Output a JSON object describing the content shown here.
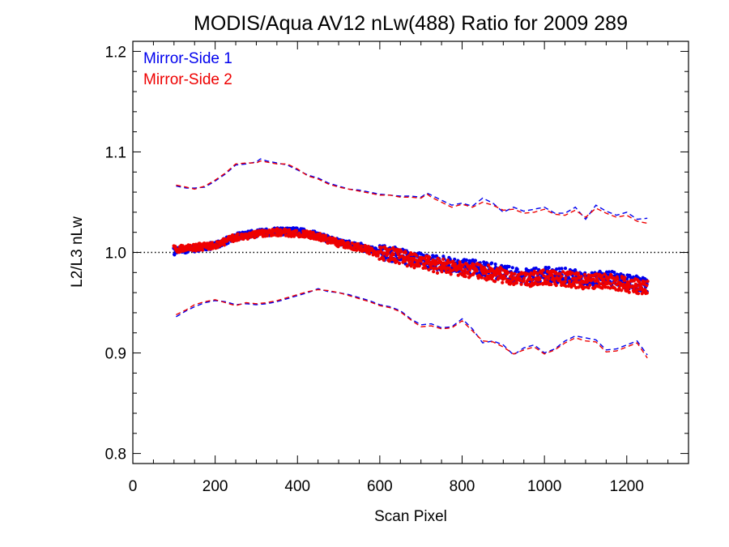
{
  "chart_data": {
    "type": "scatter",
    "title": "MODIS/Aqua AV12 nLw(488) Ratio for 2009 289",
    "xlabel": "Scan Pixel",
    "ylabel": "L2/L3 nLw",
    "xlim": [
      0,
      1350
    ],
    "ylim": [
      0.79,
      1.21
    ],
    "x_ticks": [
      0,
      200,
      400,
      600,
      800,
      1000,
      1200
    ],
    "x_tick_labels": [
      "0",
      "200",
      "400",
      "600",
      "800",
      "1000",
      "1200"
    ],
    "y_ticks": [
      0.8,
      0.9,
      1.0,
      1.1,
      1.2
    ],
    "y_tick_labels": [
      "0.8",
      "0.9",
      "1.0",
      "1.1",
      "1.2"
    ],
    "reference_line": {
      "y": 1.0,
      "style": "dotted",
      "color": "#000000"
    },
    "legend_position": "top-left",
    "series": [
      {
        "name": "Mirror-Side 1",
        "color": "#0000ee",
        "points": [
          [
            100,
            1.001
          ],
          [
            150,
            1.004
          ],
          [
            200,
            1.007
          ],
          [
            250,
            1.016
          ],
          [
            300,
            1.019
          ],
          [
            350,
            1.021
          ],
          [
            400,
            1.021
          ],
          [
            450,
            1.017
          ],
          [
            500,
            1.01
          ],
          [
            550,
            1.006
          ],
          [
            600,
            1.0
          ],
          [
            650,
            0.997
          ],
          [
            700,
            0.992
          ],
          [
            750,
            0.989
          ],
          [
            800,
            0.986
          ],
          [
            850,
            0.984
          ],
          [
            900,
            0.98
          ],
          [
            950,
            0.976
          ],
          [
            1000,
            0.978
          ],
          [
            1050,
            0.977
          ],
          [
            1100,
            0.974
          ],
          [
            1150,
            0.975
          ],
          [
            1200,
            0.971
          ],
          [
            1250,
            0.967
          ]
        ],
        "upper": [
          [
            105,
            1.066
          ],
          [
            130,
            1.064
          ],
          [
            150,
            1.064
          ],
          [
            175,
            1.065
          ],
          [
            200,
            1.071
          ],
          [
            225,
            1.078
          ],
          [
            250,
            1.087
          ],
          [
            275,
            1.088
          ],
          [
            300,
            1.09
          ],
          [
            310,
            1.093
          ],
          [
            325,
            1.091
          ],
          [
            350,
            1.089
          ],
          [
            375,
            1.087
          ],
          [
            400,
            1.082
          ],
          [
            425,
            1.077
          ],
          [
            450,
            1.074
          ],
          [
            475,
            1.069
          ],
          [
            500,
            1.066
          ],
          [
            525,
            1.063
          ],
          [
            550,
            1.062
          ],
          [
            575,
            1.06
          ],
          [
            600,
            1.058
          ],
          [
            625,
            1.057
          ],
          [
            650,
            1.056
          ],
          [
            675,
            1.056
          ],
          [
            700,
            1.055
          ],
          [
            715,
            1.059
          ],
          [
            725,
            1.057
          ],
          [
            750,
            1.052
          ],
          [
            775,
            1.047
          ],
          [
            800,
            1.049
          ],
          [
            825,
            1.046
          ],
          [
            850,
            1.054
          ],
          [
            875,
            1.049
          ],
          [
            900,
            1.04
          ],
          [
            925,
            1.045
          ],
          [
            950,
            1.041
          ],
          [
            975,
            1.043
          ],
          [
            1000,
            1.045
          ],
          [
            1025,
            1.039
          ],
          [
            1050,
            1.039
          ],
          [
            1075,
            1.045
          ],
          [
            1100,
            1.033
          ],
          [
            1125,
            1.047
          ],
          [
            1150,
            1.041
          ],
          [
            1175,
            1.037
          ],
          [
            1200,
            1.04
          ],
          [
            1225,
            1.033
          ],
          [
            1250,
            1.034
          ]
        ],
        "lower": [
          [
            105,
            0.936
          ],
          [
            130,
            0.942
          ],
          [
            150,
            0.946
          ],
          [
            175,
            0.95
          ],
          [
            200,
            0.952
          ],
          [
            225,
            0.951
          ],
          [
            250,
            0.948
          ],
          [
            275,
            0.949
          ],
          [
            300,
            0.948
          ],
          [
            325,
            0.949
          ],
          [
            350,
            0.951
          ],
          [
            375,
            0.954
          ],
          [
            400,
            0.957
          ],
          [
            425,
            0.96
          ],
          [
            450,
            0.964
          ],
          [
            475,
            0.961
          ],
          [
            500,
            0.96
          ],
          [
            525,
            0.958
          ],
          [
            550,
            0.955
          ],
          [
            575,
            0.952
          ],
          [
            600,
            0.948
          ],
          [
            625,
            0.946
          ],
          [
            650,
            0.942
          ],
          [
            675,
            0.934
          ],
          [
            700,
            0.928
          ],
          [
            725,
            0.929
          ],
          [
            750,
            0.925
          ],
          [
            775,
            0.926
          ],
          [
            800,
            0.934
          ],
          [
            825,
            0.924
          ],
          [
            850,
            0.91
          ],
          [
            875,
            0.912
          ],
          [
            900,
            0.908
          ],
          [
            925,
            0.898
          ],
          [
            950,
            0.905
          ],
          [
            975,
            0.908
          ],
          [
            1000,
            0.9
          ],
          [
            1025,
            0.904
          ],
          [
            1050,
            0.912
          ],
          [
            1075,
            0.917
          ],
          [
            1100,
            0.915
          ],
          [
            1125,
            0.913
          ],
          [
            1150,
            0.903
          ],
          [
            1175,
            0.904
          ],
          [
            1200,
            0.908
          ],
          [
            1225,
            0.912
          ],
          [
            1250,
            0.898
          ]
        ]
      },
      {
        "name": "Mirror-Side 2",
        "color": "#ee0000",
        "points": [
          [
            100,
            1.003
          ],
          [
            150,
            1.005
          ],
          [
            200,
            1.007
          ],
          [
            250,
            1.015
          ],
          [
            300,
            1.018
          ],
          [
            350,
            1.02
          ],
          [
            400,
            1.019
          ],
          [
            450,
            1.016
          ],
          [
            500,
            1.009
          ],
          [
            550,
            1.005
          ],
          [
            600,
            0.999
          ],
          [
            650,
            0.996
          ],
          [
            700,
            0.99
          ],
          [
            750,
            0.986
          ],
          [
            800,
            0.983
          ],
          [
            850,
            0.981
          ],
          [
            900,
            0.977
          ],
          [
            950,
            0.973
          ],
          [
            1000,
            0.975
          ],
          [
            1050,
            0.974
          ],
          [
            1100,
            0.971
          ],
          [
            1150,
            0.972
          ],
          [
            1200,
            0.968
          ],
          [
            1250,
            0.964
          ]
        ],
        "upper": [
          [
            105,
            1.067
          ],
          [
            130,
            1.065
          ],
          [
            150,
            1.063
          ],
          [
            175,
            1.066
          ],
          [
            200,
            1.072
          ],
          [
            225,
            1.079
          ],
          [
            250,
            1.088
          ],
          [
            275,
            1.089
          ],
          [
            300,
            1.089
          ],
          [
            310,
            1.091
          ],
          [
            325,
            1.09
          ],
          [
            350,
            1.088
          ],
          [
            375,
            1.088
          ],
          [
            400,
            1.083
          ],
          [
            425,
            1.076
          ],
          [
            450,
            1.073
          ],
          [
            475,
            1.068
          ],
          [
            500,
            1.065
          ],
          [
            525,
            1.063
          ],
          [
            550,
            1.061
          ],
          [
            575,
            1.059
          ],
          [
            600,
            1.057
          ],
          [
            625,
            1.057
          ],
          [
            650,
            1.055
          ],
          [
            675,
            1.055
          ],
          [
            700,
            1.054
          ],
          [
            715,
            1.058
          ],
          [
            725,
            1.055
          ],
          [
            750,
            1.05
          ],
          [
            775,
            1.045
          ],
          [
            800,
            1.048
          ],
          [
            825,
            1.045
          ],
          [
            850,
            1.05
          ],
          [
            875,
            1.047
          ],
          [
            900,
            1.042
          ],
          [
            925,
            1.043
          ],
          [
            950,
            1.039
          ],
          [
            975,
            1.04
          ],
          [
            1000,
            1.043
          ],
          [
            1025,
            1.038
          ],
          [
            1050,
            1.037
          ],
          [
            1075,
            1.042
          ],
          [
            1100,
            1.035
          ],
          [
            1125,
            1.044
          ],
          [
            1150,
            1.039
          ],
          [
            1175,
            1.035
          ],
          [
            1200,
            1.037
          ],
          [
            1225,
            1.031
          ],
          [
            1250,
            1.029
          ]
        ],
        "lower": [
          [
            105,
            0.938
          ],
          [
            130,
            0.943
          ],
          [
            150,
            0.948
          ],
          [
            175,
            0.951
          ],
          [
            200,
            0.953
          ],
          [
            225,
            0.95
          ],
          [
            250,
            0.947
          ],
          [
            275,
            0.95
          ],
          [
            300,
            0.949
          ],
          [
            325,
            0.95
          ],
          [
            350,
            0.952
          ],
          [
            375,
            0.955
          ],
          [
            400,
            0.958
          ],
          [
            425,
            0.961
          ],
          [
            450,
            0.963
          ],
          [
            475,
            0.962
          ],
          [
            500,
            0.96
          ],
          [
            525,
            0.957
          ],
          [
            550,
            0.954
          ],
          [
            575,
            0.951
          ],
          [
            600,
            0.947
          ],
          [
            625,
            0.945
          ],
          [
            650,
            0.941
          ],
          [
            675,
            0.933
          ],
          [
            700,
            0.926
          ],
          [
            725,
            0.927
          ],
          [
            750,
            0.924
          ],
          [
            775,
            0.925
          ],
          [
            800,
            0.932
          ],
          [
            825,
            0.922
          ],
          [
            850,
            0.912
          ],
          [
            875,
            0.911
          ],
          [
            900,
            0.906
          ],
          [
            925,
            0.899
          ],
          [
            950,
            0.903
          ],
          [
            975,
            0.906
          ],
          [
            1000,
            0.899
          ],
          [
            1025,
            0.903
          ],
          [
            1050,
            0.91
          ],
          [
            1075,
            0.915
          ],
          [
            1100,
            0.912
          ],
          [
            1125,
            0.911
          ],
          [
            1150,
            0.901
          ],
          [
            1175,
            0.902
          ],
          [
            1200,
            0.906
          ],
          [
            1225,
            0.91
          ],
          [
            1250,
            0.895
          ]
        ]
      }
    ]
  }
}
